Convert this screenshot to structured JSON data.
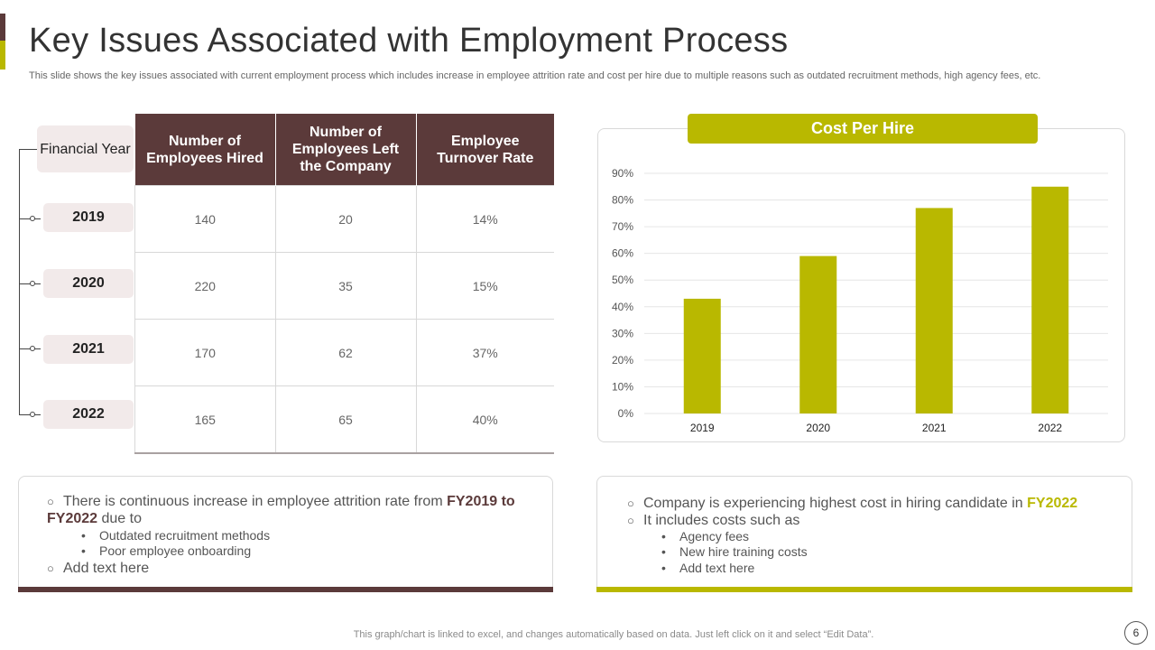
{
  "title": "Key Issues Associated with Employment Process",
  "subtitle": "This slide shows the key issues associated with current employment process which includes increase in employee attrition rate and cost per hire due to  multiple reasons such as outdated recruitment methods, high agency fees, etc.",
  "colors": {
    "brown": "#5b3a3a",
    "olive": "#b9b800"
  },
  "table": {
    "year_header": "Financial Year",
    "headers": [
      "Number of Employees Hired",
      "Number of Employees  Left the Company",
      "Employee Turnover Rate"
    ],
    "rows": [
      {
        "year": "2019",
        "hired": "140",
        "left": "20",
        "rate": "14%"
      },
      {
        "year": "2020",
        "hired": "220",
        "left": "35",
        "rate": "15%"
      },
      {
        "year": "2021",
        "hired": "170",
        "left": "62",
        "rate": "37%"
      },
      {
        "year": "2022",
        "hired": "165",
        "left": "65",
        "rate": "40%"
      }
    ]
  },
  "chart_data": {
    "type": "bar",
    "title": "Cost Per Hire",
    "categories": [
      "2019",
      "2020",
      "2021",
      "2022"
    ],
    "values": [
      43,
      59,
      77,
      85
    ],
    "ylim": [
      0,
      90
    ],
    "yticks": [
      "0%",
      "10%",
      "20%",
      "30%",
      "40%",
      "50%",
      "60%",
      "70%",
      "80%",
      "90%"
    ],
    "xlabel": "",
    "ylabel": "",
    "color": "#b9b800",
    "grid": true
  },
  "left_box": {
    "point1_prefix": "There is continuous  increase in employee attrition rate from ",
    "point1_bold": "FY2019 to FY2022",
    "point1_suffix": " due to",
    "sub1": "Outdated recruitment methods",
    "sub2": "Poor employee onboarding",
    "point2": "Add text here"
  },
  "right_box": {
    "point1_prefix": "Company is experiencing highest cost in hiring candidate in ",
    "point1_bold": "FY2022",
    "point2": "It includes costs such as",
    "sub1": "Agency fees",
    "sub2": "New hire training costs",
    "sub3": "Add text here"
  },
  "footer": "This graph/chart is linked to excel,  and changes automatically based on data. Just left click on it and select “Edit Data”.",
  "page_number": "6"
}
